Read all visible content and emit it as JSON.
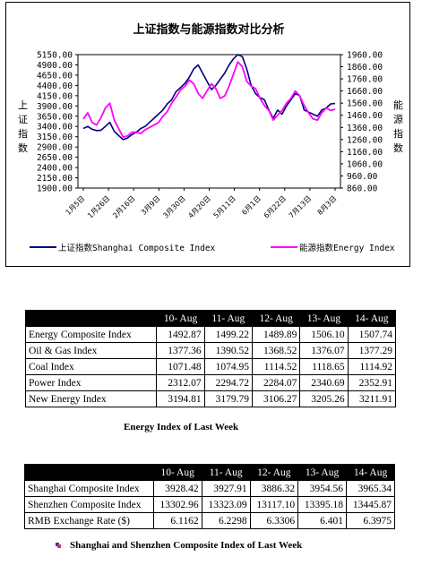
{
  "chart_data": {
    "type": "line",
    "title": "上证指数与能源指数对比分析",
    "left_axis_label": "上证指数",
    "right_axis_label": "能源指数",
    "left_ticks": [
      "5150.00",
      "4900.00",
      "4650.00",
      "4400.00",
      "4150.00",
      "3900.00",
      "3650.00",
      "3400.00",
      "3150.00",
      "2900.00",
      "2650.00",
      "2400.00",
      "2150.00",
      "1900.00"
    ],
    "right_ticks": [
      "1960.00",
      "1860.00",
      "1760.00",
      "1660.00",
      "1560.00",
      "1460.00",
      "1360.00",
      "1260.00",
      "1160.00",
      "1060.00",
      "960.00",
      "860.00"
    ],
    "ylim_left": [
      1900,
      5150
    ],
    "ylim_right": [
      860,
      1960
    ],
    "x_labels": [
      "1月5日",
      "1月26日",
      "2月16日",
      "3月9日",
      "3月30日",
      "4月20日",
      "5月11日",
      "6月1日",
      "6月22日",
      "7月13日",
      "8月3日"
    ],
    "series": [
      {
        "name": "上证指数Shanghai Composite Index",
        "color": "#000080",
        "axis": "left",
        "values": [
          3350,
          3400,
          3330,
          3300,
          3310,
          3400,
          3500,
          3280,
          3180,
          3080,
          3120,
          3200,
          3260,
          3350,
          3400,
          3500,
          3600,
          3700,
          3800,
          3950,
          4050,
          4250,
          4350,
          4450,
          4600,
          4800,
          4900,
          4700,
          4500,
          4300,
          4400,
          4550,
          4700,
          4900,
          5050,
          5150,
          5100,
          4800,
          4400,
          4200,
          4100,
          4050,
          3800,
          3600,
          3800,
          3700,
          3900,
          4050,
          4200,
          4150,
          3800,
          3750,
          3700,
          3650,
          3800,
          3850,
          3950,
          3960
        ]
      },
      {
        "name": "能源指数Energy Index",
        "color": "#ff00ff",
        "axis": "right",
        "values": [
          1430,
          1480,
          1400,
          1380,
          1440,
          1520,
          1560,
          1420,
          1350,
          1280,
          1290,
          1320,
          1320,
          1310,
          1340,
          1360,
          1380,
          1400,
          1450,
          1490,
          1560,
          1610,
          1670,
          1700,
          1750,
          1720,
          1640,
          1600,
          1660,
          1720,
          1680,
          1600,
          1620,
          1700,
          1800,
          1900,
          1860,
          1740,
          1700,
          1680,
          1600,
          1540,
          1500,
          1420,
          1460,
          1500,
          1560,
          1600,
          1660,
          1620,
          1540,
          1480,
          1430,
          1420,
          1480,
          1520,
          1500,
          1510
        ]
      }
    ]
  },
  "table1": {
    "columns": [
      "",
      "10- Aug",
      "11- Aug",
      "12- Aug",
      "13- Aug",
      "14- Aug"
    ],
    "rows": [
      [
        "Energy Composite Index",
        "1492.87",
        "1499.22",
        "1489.89",
        "1506.10",
        "1507.74"
      ],
      [
        "Oil & Gas Index",
        "1377.36",
        "1390.52",
        "1368.52",
        "1376.07",
        "1377.29"
      ],
      [
        "Coal Index",
        "1071.48",
        "1074.95",
        "1114.52",
        "1118.65",
        "1114.92"
      ],
      [
        "Power Index",
        "2312.07",
        "2294.72",
        "2284.07",
        "2340.69",
        "2352.91"
      ],
      [
        "New Energy Index",
        "3194.81",
        "3179.79",
        "3106.27",
        "3205.26",
        "3211.91"
      ]
    ],
    "caption": "Energy Index of Last Week"
  },
  "table2": {
    "columns": [
      "",
      "10- Aug",
      "11- Aug",
      "12- Aug",
      "13- Aug",
      "14- Aug"
    ],
    "rows": [
      [
        "Shanghai Composite Index",
        "3928.42",
        "3927.91",
        "3886.32",
        "3954.56",
        "3965.34"
      ],
      [
        "Shenzhen Composite Index",
        "13302.96",
        "13323.09",
        "13117.10",
        "13395.18",
        "13445.87"
      ],
      [
        "RMB Exchange Rate ($)",
        "6.1162",
        "6.2298",
        "6.3306",
        "6.401",
        "6.3975"
      ]
    ],
    "caption": "Shanghai and Shenzhen Composite Index of Last Week"
  }
}
